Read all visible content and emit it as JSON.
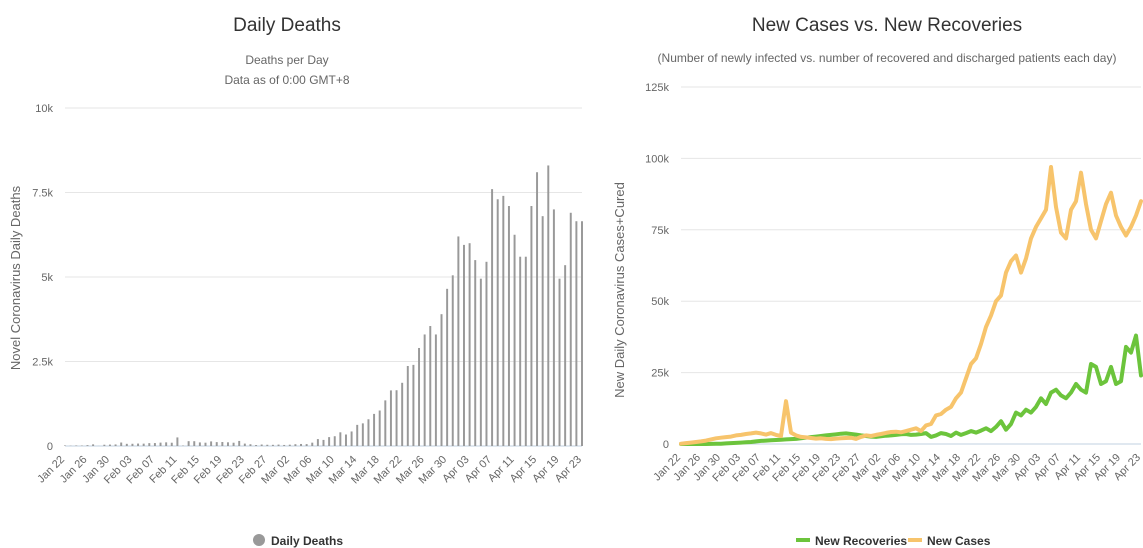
{
  "chart_data": [
    {
      "type": "bar",
      "title": "Daily Deaths",
      "subtitle": "Deaths per Day",
      "subtitle2": "Data as of 0:00 GMT+8",
      "ylabel": "Novel Coronavirus Daily Deaths",
      "xlabel": "",
      "ylim": [
        0,
        10000
      ],
      "yticks": [
        "0",
        "2.5k",
        "5k",
        "7.5k",
        "10k"
      ],
      "ytick_values": [
        0,
        2500,
        5000,
        7500,
        10000
      ],
      "grid": true,
      "legend_position": "bottom",
      "x_tick_labels": [
        "Jan 22",
        "Jan 26",
        "Jan 30",
        "Feb 03",
        "Feb 07",
        "Feb 11",
        "Feb 15",
        "Feb 19",
        "Feb 23",
        "Feb 27",
        "Mar 02",
        "Mar 06",
        "Mar 10",
        "Mar 14",
        "Mar 18",
        "Mar 22",
        "Mar 26",
        "Mar 30",
        "Apr 03",
        "Apr 07",
        "Apr 11",
        "Apr 15",
        "Apr 19",
        "Apr 23"
      ],
      "series": [
        {
          "name": "Daily Deaths",
          "color": "#999999",
          "start_date": "Jan 22",
          "values": [
            17,
            8,
            16,
            14,
            26,
            49,
            2,
            38,
            42,
            46,
            103,
            64,
            66,
            72,
            70,
            85,
            87,
            100,
            108,
            97,
            254,
            13,
            143,
            142,
            106,
            98,
            136,
            115,
            118,
            109,
            97,
            150,
            71,
            52,
            29,
            44,
            37,
            35,
            42,
            31,
            39,
            53,
            60,
            56,
            99,
            205,
            180,
            263,
            289,
            405,
            340,
            430,
            625,
            670,
            791,
            950,
            1050,
            1350,
            1645,
            1650,
            1870,
            2367,
            2400,
            2900,
            3300,
            3550,
            3300,
            3900,
            4650,
            5050,
            6200,
            5950,
            6000,
            5500,
            4950,
            5450,
            7600,
            7300,
            7400,
            7100,
            6250,
            5600,
            5600,
            7100,
            8100,
            6800,
            8300,
            7000,
            4950,
            5350,
            6900,
            6650,
            6650
          ]
        }
      ]
    },
    {
      "type": "line",
      "title": "New Cases vs. New Recoveries",
      "subtitle": "(Number of newly infected vs. number of recovered and discharged patients each day)",
      "ylabel": "New Daily Coronavirus Cases+Cured",
      "xlabel": "",
      "ylim": [
        0,
        125000
      ],
      "yticks": [
        "0",
        "25k",
        "50k",
        "75k",
        "100k",
        "125k"
      ],
      "ytick_values": [
        0,
        25000,
        50000,
        75000,
        100000,
        125000
      ],
      "grid": true,
      "legend_position": "bottom",
      "x_tick_labels": [
        "Jan 22",
        "Jan 26",
        "Jan 30",
        "Feb 03",
        "Feb 07",
        "Feb 11",
        "Feb 15",
        "Feb 19",
        "Feb 23",
        "Feb 27",
        "Mar 02",
        "Mar 06",
        "Mar 10",
        "Mar 14",
        "Mar 18",
        "Mar 22",
        "Mar 26",
        "Mar 30",
        "Apr 03",
        "Apr 07",
        "Apr 11",
        "Apr 15",
        "Apr 19",
        "Apr 23"
      ],
      "series": [
        {
          "name": "New Recoveries",
          "color": "#6cc43c",
          "start_date": "Jan 22",
          "values": [
            0,
            0,
            0,
            0,
            0,
            0,
            50,
            100,
            100,
            200,
            300,
            400,
            500,
            600,
            700,
            900,
            1100,
            1200,
            1300,
            1400,
            1500,
            1600,
            1700,
            1800,
            2000,
            2200,
            2400,
            2600,
            2800,
            3000,
            3200,
            3400,
            3600,
            3700,
            3500,
            3300,
            3000,
            2800,
            2600,
            2500,
            2700,
            2900,
            3000,
            3200,
            3400,
            3500,
            3200,
            3300,
            3500,
            3800,
            2500,
            3000,
            3800,
            3500,
            2800,
            4000,
            3200,
            3800,
            4500,
            4000,
            4700,
            5500,
            4500,
            6000,
            8000,
            5000,
            7000,
            11000,
            10000,
            12000,
            11000,
            13000,
            16000,
            14000,
            18000,
            19000,
            17000,
            16000,
            18000,
            21000,
            19000,
            18000,
            28000,
            27000,
            21000,
            22000,
            27000,
            21000,
            22000,
            34000,
            32000,
            38000,
            24000
          ]
        },
        {
          "name": "New Cases",
          "color": "#f7c46c",
          "start_date": "Jan 22",
          "values": [
            100,
            300,
            500,
            700,
            900,
            1200,
            1600,
            2000,
            2200,
            2400,
            2600,
            3000,
            3200,
            3500,
            3700,
            4000,
            3700,
            3300,
            3800,
            3200,
            2800,
            15000,
            4000,
            3000,
            2500,
            2300,
            2100,
            1900,
            2000,
            1800,
            1700,
            1900,
            2000,
            2100,
            2200,
            1800,
            2500,
            3000,
            2800,
            3200,
            3500,
            3900,
            4200,
            4300,
            4100,
            4500,
            5000,
            5500,
            4500,
            6500,
            7000,
            10000,
            10500,
            12000,
            13000,
            16000,
            18000,
            23000,
            28000,
            30000,
            35000,
            41000,
            45000,
            50000,
            52000,
            60000,
            64000,
            66000,
            60000,
            65000,
            72000,
            76000,
            79000,
            82000,
            97000,
            83000,
            74000,
            72000,
            82000,
            85000,
            95000,
            84000,
            75000,
            72000,
            78000,
            84000,
            88000,
            80000,
            76000,
            73000,
            76000,
            80000,
            85000
          ]
        }
      ]
    }
  ]
}
